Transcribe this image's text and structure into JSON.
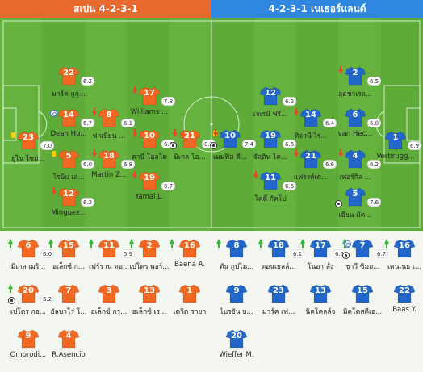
{
  "teams": {
    "home": {
      "label": "สเปน 4-2-3-1",
      "color": "#e8692e"
    },
    "away": {
      "label": "4-2-3-1 เนเธอร์แลนด์",
      "color": "#2f87e0"
    }
  },
  "colors": {
    "home_shirt": "#f26722",
    "away_shirt": "#2366c9",
    "pitch": "#65b23f",
    "pitch_alt": "#5fab3a"
  },
  "home_lineup": [
    {
      "num": "23",
      "rating": "7.0",
      "name": "ยูไน ไซม่...",
      "marks": [
        "yellow"
      ]
    },
    {
      "num": "22",
      "rating": "6.2",
      "name": "มาร์ค กูกู...",
      "marks": []
    },
    {
      "num": "14",
      "rating": "6.7",
      "name": "Dean Hu...",
      "marks": [
        "captain"
      ]
    },
    {
      "num": "5",
      "rating": "6.0",
      "name": "โรบิน เล...",
      "marks": [
        "yellow"
      ]
    },
    {
      "num": "12",
      "rating": "6.3",
      "name": "Minguez...",
      "marks": [
        "sub_out"
      ]
    },
    {
      "num": "8",
      "rating": "6.1",
      "name": "ฟาเบียน ...",
      "marks": [
        "sub_out"
      ]
    },
    {
      "num": "18",
      "rating": "6.8",
      "name": "Martín Z...",
      "marks": [
        "sub_out"
      ]
    },
    {
      "num": "17",
      "rating": "7.8",
      "name": "Williams ...",
      "marks": [
        "sub_out"
      ]
    },
    {
      "num": "10",
      "rating": "6.5",
      "name": "ดานี โอลโม",
      "marks": [
        "sub_out"
      ]
    },
    {
      "num": "19",
      "rating": "6.7",
      "name": "Yamal L.",
      "marks": [
        "sub_out"
      ]
    },
    {
      "num": "21",
      "rating": "8.1",
      "name": "มิเกล โอ...",
      "marks": [
        "ball",
        "sub_out"
      ]
    }
  ],
  "away_lineup": [
    {
      "num": "10",
      "rating": "7.4",
      "name": "เมมฟิส ดี...",
      "marks": [
        "yellow",
        "sub_out",
        "ball"
      ]
    },
    {
      "num": "12",
      "rating": "6.2",
      "name": "เจเรมี ฟรี...",
      "marks": []
    },
    {
      "num": "19",
      "rating": "6.6",
      "name": "จัสติน ไค...",
      "marks": []
    },
    {
      "num": "11",
      "rating": "6.6",
      "name": "โคดี้ กัคโป",
      "marks": [
        "sub_out"
      ]
    },
    {
      "num": "14",
      "rating": "6.4",
      "name": "ทิจานี ไร...",
      "marks": [
        "sub_out"
      ]
    },
    {
      "num": "21",
      "rating": "6.6",
      "name": "แฟรงค์เด...",
      "marks": [
        "sub_out"
      ]
    },
    {
      "num": "2",
      "rating": "6.5",
      "name": "ลุตชาเรล...",
      "marks": [
        "sub_out"
      ]
    },
    {
      "num": "6",
      "rating": "6.0",
      "name": "van Hec...",
      "marks": []
    },
    {
      "num": "4",
      "rating": "6.2",
      "name": "เฟอร์กิล ...",
      "marks": [
        "sub_out"
      ]
    },
    {
      "num": "5",
      "rating": "7.6",
      "name": "เอียน มัต...",
      "marks": [
        "ball"
      ]
    },
    {
      "num": "1",
      "rating": "6.9",
      "name": "Verbrugg...",
      "marks": []
    }
  ],
  "home_bench": [
    {
      "num": "6",
      "rating": "6.0",
      "name": "มิเกล เมริ...",
      "marks": [
        "sub_in"
      ]
    },
    {
      "num": "15",
      "rating": "",
      "name": "อเล็กซ์ ก...",
      "marks": [
        "sub_in"
      ]
    },
    {
      "num": "11",
      "rating": "5.9",
      "name": "เฟร์ราน ตอ...",
      "marks": [
        "sub_in"
      ]
    },
    {
      "num": "2",
      "rating": "",
      "name": "เปโดร พอร์...",
      "marks": [
        "sub_in"
      ]
    },
    {
      "num": "16",
      "rating": "",
      "name": "Baena A.",
      "marks": [
        "sub_in"
      ]
    },
    {
      "num": "20",
      "rating": "6.2",
      "name": "เปโดร กอ...",
      "marks": [
        "sub_in",
        "ball"
      ]
    },
    {
      "num": "7",
      "rating": "",
      "name": "อัลบาโร่ โ...",
      "marks": []
    },
    {
      "num": "3",
      "rating": "",
      "name": "อเล็กซ์ กร...",
      "marks": []
    },
    {
      "num": "13",
      "rating": "",
      "name": "อเล็กซ์ เร...",
      "marks": []
    },
    {
      "num": "1",
      "rating": "",
      "name": "เดวิด รายา",
      "marks": []
    },
    {
      "num": "9",
      "rating": "",
      "name": "Omorodi...",
      "marks": []
    },
    {
      "num": "4",
      "rating": "",
      "name": "R.Asencio",
      "marks": []
    }
  ],
  "away_bench": [
    {
      "num": "8",
      "rating": "",
      "name": "ทัน กูปไม...",
      "marks": [
        "sub_in"
      ]
    },
    {
      "num": "18",
      "rating": "6.1",
      "name": "ดอนเยลล์...",
      "marks": [
        "sub_in"
      ]
    },
    {
      "num": "17",
      "rating": "6.5",
      "name": "โนอา ลัง",
      "marks": [
        "sub_in"
      ]
    },
    {
      "num": "7",
      "rating": "6.7",
      "name": "ชาวี ซิมอ...",
      "marks": [
        "sub_in",
        "captain",
        "ball"
      ]
    },
    {
      "num": "16",
      "rating": "",
      "name": "เคนเนธ เ...",
      "marks": [
        "sub_in"
      ]
    },
    {
      "num": "9",
      "rating": "",
      "name": "ไบรอัน บ...",
      "marks": []
    },
    {
      "num": "23",
      "rating": "",
      "name": "มาร์ค เฟ...",
      "marks": []
    },
    {
      "num": "13",
      "rating": "",
      "name": "นิคโคลล์จ",
      "marks": []
    },
    {
      "num": "15",
      "rating": "",
      "name": "มิคโคสดีเอ...",
      "marks": []
    },
    {
      "num": "22",
      "rating": "",
      "name": "Baas Y.",
      "marks": []
    },
    {
      "num": "20",
      "rating": "",
      "name": "Wieffer M.",
      "marks": []
    }
  ]
}
